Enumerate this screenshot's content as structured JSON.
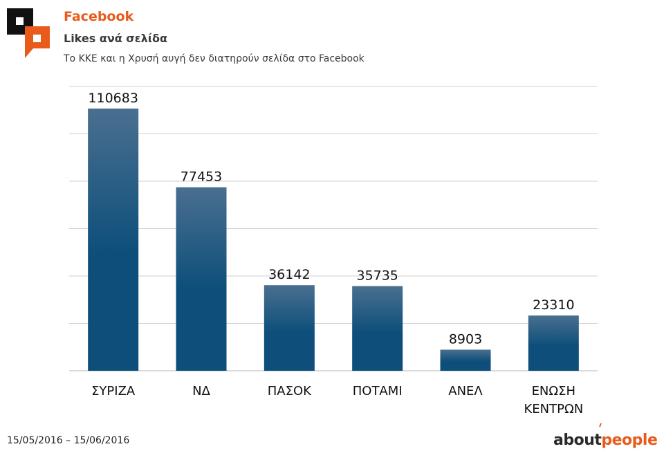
{
  "header": {
    "title": "Facebook",
    "subtitle": "Likes ανά σελίδα",
    "note": "Το ΚΚΕ και η Χρυσή αυγή δεν διατηρούν σελίδα στο Facebook"
  },
  "footer": {
    "date_range": "15/05/2016 – 15/06/2016",
    "brand_part1": "about",
    "brand_part2": "people"
  },
  "colors": {
    "accent": "#e85b1a",
    "bar_top": "#4a6f90",
    "bar_bottom": "#0d4f7a",
    "grid": "#cfcfcf",
    "logo_dark": "#111111"
  },
  "chart_data": {
    "type": "bar",
    "title": "Likes ανά σελίδα",
    "categories": [
      [
        "ΣΥΡΙΖΑ"
      ],
      [
        "ΝΔ"
      ],
      [
        "ΠΑΣΟΚ"
      ],
      [
        "ΠΟΤΑΜΙ"
      ],
      [
        "ΑΝΕΛ"
      ],
      [
        "ΕΝΩΣΗ",
        "ΚΕΝΤΡΩΝ"
      ]
    ],
    "values": [
      110683,
      77453,
      36142,
      35735,
      8903,
      23310
    ],
    "ylim": [
      0,
      120000
    ],
    "ytick_step": 20000,
    "grid": true,
    "xlabel": "",
    "ylabel": ""
  }
}
